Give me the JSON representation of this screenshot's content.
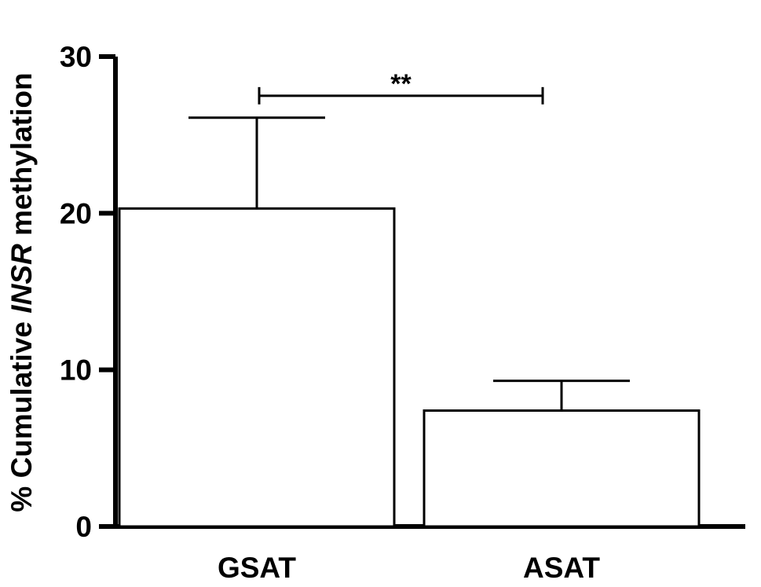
{
  "chart_data": {
    "type": "bar",
    "title": "",
    "xlabel": "",
    "ylabel": {
      "prefix": "% Cumulative ",
      "gene": "INSR",
      "suffix": " methylation"
    },
    "categories": [
      "GSAT",
      "ASAT"
    ],
    "values": [
      20.3,
      7.4
    ],
    "error_upper": [
      26.1,
      9.3
    ],
    "ylim": [
      0,
      30
    ],
    "yticks": [
      "0",
      "10",
      "20",
      "30"
    ],
    "ytick_values": [
      0,
      10,
      20,
      30
    ],
    "grid": false,
    "legend": "none",
    "significance": {
      "between": [
        "GSAT",
        "ASAT"
      ],
      "label": "**",
      "y": 27.5
    },
    "colors": {
      "bar_fill": "#ffffff",
      "stroke": "#000000"
    }
  }
}
